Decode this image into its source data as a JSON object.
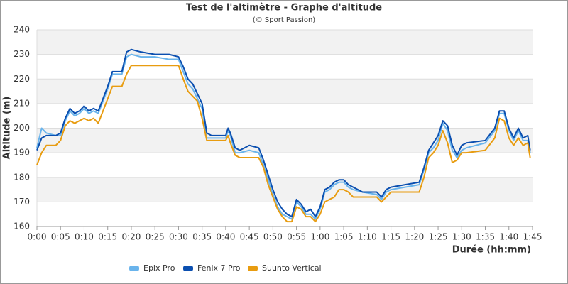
{
  "chart_data": {
    "type": "line",
    "title": "Test de l'altimètre - Graphe d'altitude",
    "subtitle": "(© Sport Passion)",
    "x_label": "Durée (hh:mm)",
    "y_label": "Altitude (m)",
    "x": [
      0,
      1,
      2,
      4,
      5,
      6,
      7,
      8,
      9,
      10,
      11,
      12,
      13,
      14,
      15,
      16,
      18,
      19,
      20,
      22,
      25,
      28,
      30,
      31,
      32,
      33,
      34,
      35,
      36,
      37,
      40,
      40.5,
      41,
      42,
      43,
      45,
      47,
      48,
      49,
      50,
      51,
      52,
      53,
      54,
      55,
      56,
      57,
      58,
      59,
      60,
      61,
      62,
      63,
      64,
      65,
      66,
      67,
      69,
      72,
      73,
      74,
      75,
      78,
      81,
      82,
      83,
      84,
      85,
      86,
      87,
      88,
      89,
      90,
      91,
      95,
      97,
      98,
      99,
      100,
      101,
      102,
      103,
      104,
      104.5
    ],
    "series": [
      {
        "name": "Epix Pro",
        "color": "#6ab4ec",
        "values": [
          192,
          200,
          198,
          197,
          197,
          203,
          207,
          205,
          206,
          208,
          206,
          207,
          206,
          211,
          216,
          222,
          222,
          229,
          230,
          229,
          229,
          228,
          228,
          223,
          218,
          216,
          212,
          208,
          196,
          196,
          196,
          199,
          197,
          190,
          190,
          191,
          190,
          185,
          179,
          173,
          168,
          165,
          164,
          163,
          170,
          168,
          165,
          165,
          163,
          167,
          174,
          175,
          177,
          178,
          178,
          176,
          175,
          174,
          173,
          171,
          174,
          175,
          176,
          177,
          183,
          190,
          192,
          195,
          202,
          199,
          191,
          188,
          191,
          192,
          194,
          199,
          206,
          206,
          199,
          195,
          199,
          195,
          195,
          190
        ]
      },
      {
        "name": "Fenix 7 Pro",
        "color": "#0b4fb0",
        "values": [
          191,
          196,
          197,
          197,
          198,
          204,
          208,
          206,
          207,
          209,
          207,
          208,
          207,
          212,
          217,
          223,
          223,
          231,
          232,
          231,
          230,
          230,
          229,
          225,
          220,
          218,
          214,
          210,
          198,
          197,
          197,
          200,
          198,
          192,
          191,
          193,
          192,
          187,
          181,
          175,
          170,
          167,
          165,
          164,
          171,
          169,
          166,
          167,
          164,
          168,
          175,
          176,
          178,
          179,
          179,
          177,
          176,
          174,
          174,
          172,
          175,
          176,
          177,
          178,
          184,
          191,
          194,
          197,
          203,
          201,
          193,
          189,
          193,
          194,
          195,
          200,
          207,
          207,
          200,
          196,
          200,
          196,
          197,
          191
        ]
      },
      {
        "name": "Suunto Vertical",
        "color": "#e89c10",
        "values": [
          185,
          190,
          193,
          193,
          195,
          201,
          203,
          202,
          203,
          204,
          203,
          204,
          202,
          207,
          212,
          217,
          217,
          222,
          225.5,
          225.5,
          225.5,
          225.5,
          225.5,
          220,
          215,
          213,
          211,
          204,
          195,
          195,
          195,
          197,
          194,
          189,
          188,
          188,
          188,
          184,
          177,
          172,
          167,
          164,
          162,
          162,
          168,
          167,
          164,
          164,
          162,
          165,
          170,
          171,
          172,
          175,
          175,
          174,
          172,
          172,
          172,
          170,
          172,
          174,
          174,
          174,
          180,
          188,
          190,
          193,
          199,
          194,
          186,
          187,
          190,
          190,
          191,
          196,
          204,
          203,
          196,
          193,
          196,
          193,
          194,
          188
        ]
      }
    ],
    "xlim": [
      0,
      105
    ],
    "xticks": [
      {
        "value": 0,
        "label": "0:00"
      },
      {
        "value": 5,
        "label": "0:05"
      },
      {
        "value": 10,
        "label": "0:10"
      },
      {
        "value": 15,
        "label": "0:15"
      },
      {
        "value": 20,
        "label": "0:20"
      },
      {
        "value": 25,
        "label": "0:25"
      },
      {
        "value": 30,
        "label": "0:30"
      },
      {
        "value": 35,
        "label": "0:35"
      },
      {
        "value": 40,
        "label": "0:40"
      },
      {
        "value": 45,
        "label": "0:45"
      },
      {
        "value": 50,
        "label": "0:50"
      },
      {
        "value": 55,
        "label": "0:55"
      },
      {
        "value": 60,
        "label": "1:00"
      },
      {
        "value": 65,
        "label": "1:05"
      },
      {
        "value": 70,
        "label": "1:10"
      },
      {
        "value": 75,
        "label": "1:15"
      },
      {
        "value": 80,
        "label": "1:20"
      },
      {
        "value": 85,
        "label": "1:25"
      },
      {
        "value": 90,
        "label": "1:30"
      },
      {
        "value": 95,
        "label": "1:35"
      },
      {
        "value": 100,
        "label": "1:40"
      },
      {
        "value": 105,
        "label": "1:45"
      }
    ],
    "ylim": [
      160,
      240
    ],
    "yticks": [
      160,
      170,
      180,
      190,
      200,
      210,
      220,
      230,
      240
    ],
    "grid": true,
    "legend": "bottom"
  }
}
